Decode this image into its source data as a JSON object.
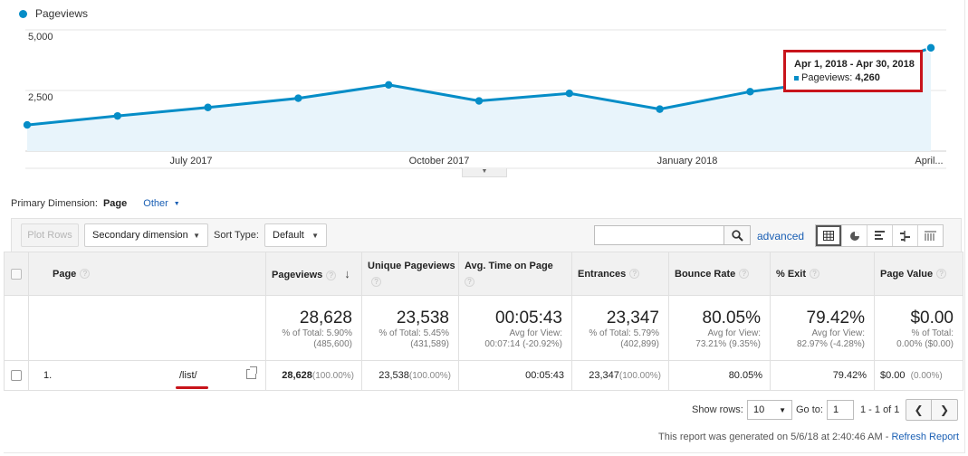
{
  "chart_data": {
    "type": "area",
    "series": [
      {
        "name": "Pageviews",
        "color": "#058dc7",
        "values": [
          1080,
          1450,
          1800,
          2180,
          2730,
          2070,
          2380,
          1730,
          2450,
          2930,
          4260
        ]
      }
    ],
    "x_tick_labels": [
      "July 2017",
      "October 2017",
      "January 2018",
      "April..."
    ],
    "y_tick_labels": [
      "5,000",
      "2,500"
    ],
    "ylim": [
      0,
      5000
    ],
    "grid": true,
    "legend_position": "top-left",
    "tooltip": {
      "date_range": "Apr 1, 2018 - Apr 30, 2018",
      "metric": "Pageviews",
      "value": "4,260"
    }
  },
  "controls": {
    "primary_dimension_label": "Primary Dimension:",
    "primary_dimension_value": "Page",
    "other_label": "Other",
    "plot_rows_label": "Plot Rows",
    "secondary_dimension_label": "Secondary dimension",
    "sort_type_label": "Sort Type:",
    "sort_type_value": "Default",
    "search_value": "",
    "advanced_label": "advanced",
    "view_icons": [
      "table-view-icon",
      "pie-view-icon",
      "performance-view-icon",
      "comparison-view-icon",
      "pivot-view-icon"
    ]
  },
  "table": {
    "headers": {
      "page": "Page",
      "pageviews": "Pageviews",
      "unique_pageviews": "Unique Pageviews",
      "avg_time": "Avg. Time on Page",
      "entrances": "Entrances",
      "bounce_rate": "Bounce Rate",
      "exit": "% Exit",
      "page_value": "Page Value"
    },
    "totals": {
      "pageviews": {
        "value": "28,628",
        "line1": "% of Total: 5.90%",
        "line2": "(485,600)"
      },
      "unique_pageviews": {
        "value": "23,538",
        "line1": "% of Total: 5.45%",
        "line2": "(431,589)"
      },
      "avg_time": {
        "value": "00:05:43",
        "line1": "Avg for View:",
        "line2": "00:07:14 (-20.92%)"
      },
      "entrances": {
        "value": "23,347",
        "line1": "% of Total: 5.79%",
        "line2": "(402,899)"
      },
      "bounce_rate": {
        "value": "80.05%",
        "line1": "Avg for View:",
        "line2": "73.21% (9.35%)"
      },
      "exit": {
        "value": "79.42%",
        "line1": "Avg for View:",
        "line2": "82.97% (-4.28%)"
      },
      "page_value": {
        "value": "$0.00",
        "line1": "% of Total:",
        "line2": "0.00% ($0.00)"
      }
    },
    "rows": [
      {
        "index": "1.",
        "page": "/list/",
        "pageviews": "28,628",
        "pageviews_pct": "(100.00%)",
        "unique_pageviews": "23,538",
        "unique_pageviews_pct": "(100.00%)",
        "avg_time": "00:05:43",
        "entrances": "23,347",
        "entrances_pct": "(100.00%)",
        "bounce_rate": "80.05%",
        "exit": "79.42%",
        "page_value": "$0.00",
        "page_value_pct": "(0.00%)"
      }
    ]
  },
  "pagination": {
    "show_rows_label": "Show rows:",
    "show_rows_value": "10",
    "goto_label": "Go to:",
    "goto_value": "1",
    "range": "1 - 1 of 1"
  },
  "footer": {
    "text": "This report was generated on 5/6/18 at 2:40:46 AM -",
    "refresh": "Refresh Report"
  },
  "colors": {
    "accent": "#058dc7",
    "highlight": "#c8141b",
    "link": "#1a5fb4"
  }
}
